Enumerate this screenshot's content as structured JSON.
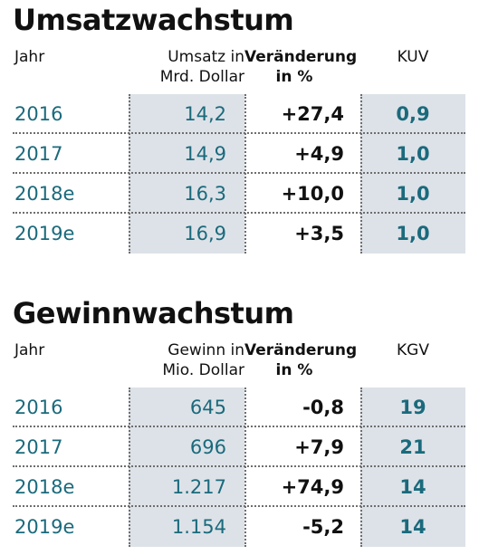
{
  "umsatz": {
    "title": "Umsatzwachstum",
    "headers": {
      "jahr": "Jahr",
      "value_line1": "Umsatz in",
      "value_line2": "Mrd. Dollar",
      "change_line1": "Veränderung",
      "change_line2": "in %",
      "ratio": "KUV"
    },
    "rows": [
      {
        "year": "2016",
        "value": "14,2",
        "change": "+27,4",
        "ratio": "0,9"
      },
      {
        "year": "2017",
        "value": "14,9",
        "change": "+4,9",
        "ratio": "1,0"
      },
      {
        "year": "2018e",
        "value": "16,3",
        "change": "+10,0",
        "ratio": "1,0"
      },
      {
        "year": "2019e",
        "value": "16,9",
        "change": "+3,5",
        "ratio": "1,0"
      }
    ]
  },
  "gewinn": {
    "title": "Gewinnwachstum",
    "headers": {
      "jahr": "Jahr",
      "value_line1": "Gewinn in",
      "value_line2": "Mio. Dollar",
      "change_line1": "Veränderung",
      "change_line2": "in %",
      "ratio": "KGV"
    },
    "rows": [
      {
        "year": "2016",
        "value": "645",
        "change": "-0,8",
        "ratio": "19"
      },
      {
        "year": "2017",
        "value": "696",
        "change": "+7,9",
        "ratio": "21"
      },
      {
        "year": "2018e",
        "value": "1.217",
        "change": "+74,9",
        "ratio": "14"
      },
      {
        "year": "2019e",
        "value": "1.154",
        "change": "-5,2",
        "ratio": "14"
      }
    ]
  },
  "colors": {
    "accent_text": "#1a6a7c",
    "shaded_column": "#dde2e8",
    "divider": "#6e6e6e"
  }
}
